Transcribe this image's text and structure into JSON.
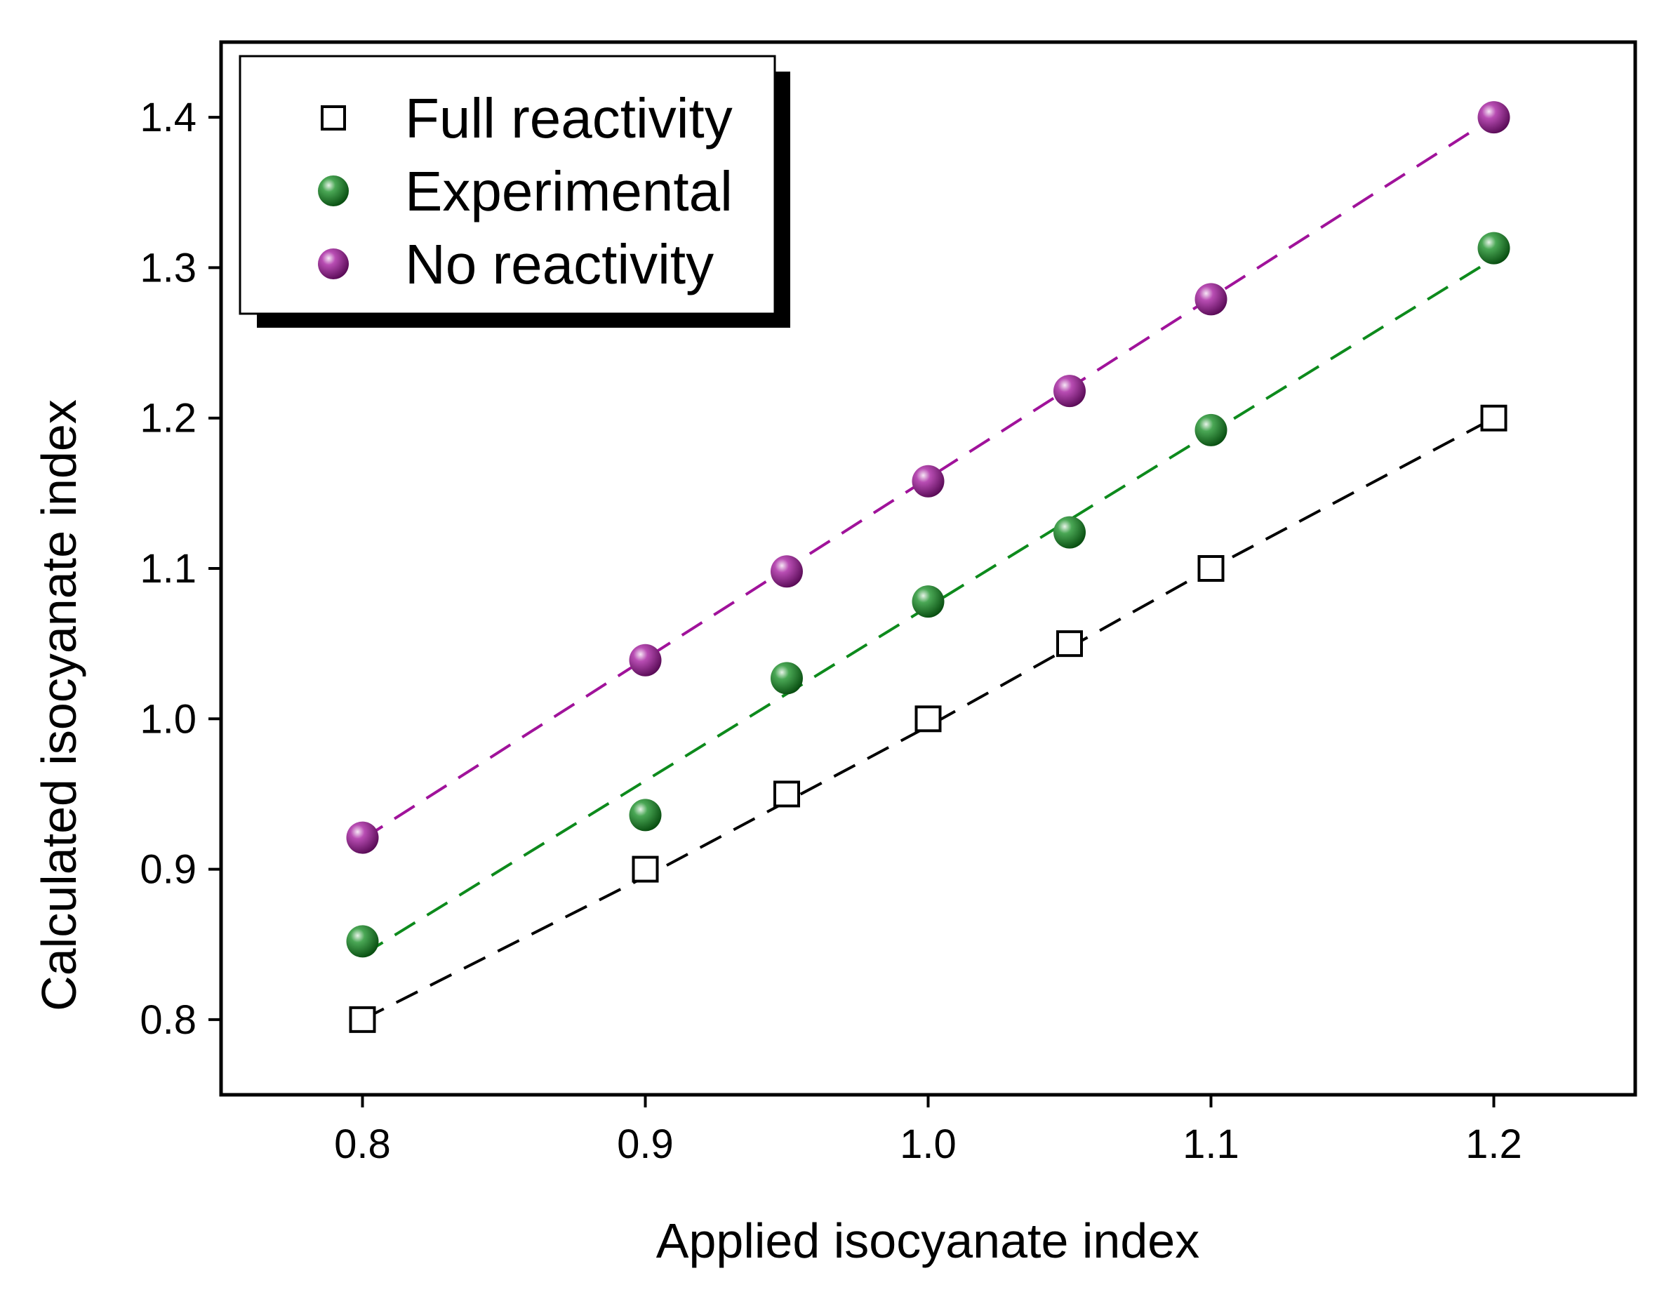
{
  "chart_data": {
    "type": "scatter",
    "title": "",
    "xlabel": "Applied isocyanate index",
    "ylabel": "Calculated isocyanate index",
    "xlim": [
      0.75,
      1.25
    ],
    "ylim": [
      0.75,
      1.45
    ],
    "xticks": [
      "0.8",
      "0.9",
      "1.0",
      "1.1",
      "1.2"
    ],
    "yticks": [
      "0.8",
      "0.9",
      "1.0",
      "1.1",
      "1.2",
      "1.3",
      "1.4"
    ],
    "grid": false,
    "legend_position": "top-left",
    "series": [
      {
        "name": "Full reactivity",
        "marker": "open-square",
        "color": "#000000",
        "x": [
          0.8,
          0.9,
          0.95,
          1.0,
          1.05,
          1.1,
          1.2
        ],
        "y": [
          0.8,
          0.9,
          0.95,
          1.0,
          1.05,
          1.1,
          1.2
        ],
        "fit": [
          [
            0.8,
            0.8
          ],
          [
            0.9,
            0.895
          ],
          [
            1.0,
            0.995
          ],
          [
            1.1,
            1.1
          ],
          [
            1.2,
            1.2
          ]
        ]
      },
      {
        "name": "Experimental",
        "marker": "sphere",
        "color": "#0d8a1c",
        "x": [
          0.8,
          0.9,
          0.95,
          1.0,
          1.05,
          1.1,
          1.2
        ],
        "y": [
          0.852,
          0.936,
          1.027,
          1.078,
          1.124,
          1.192,
          1.313
        ],
        "fit": [
          [
            0.8,
            0.843
          ],
          [
            1.2,
            1.306
          ]
        ]
      },
      {
        "name": "No reactivity",
        "marker": "sphere",
        "color": "#a0129a",
        "x": [
          0.8,
          0.9,
          0.95,
          1.0,
          1.05,
          1.1,
          1.2
        ],
        "y": [
          0.921,
          1.039,
          1.098,
          1.158,
          1.218,
          1.279,
          1.4
        ],
        "fit": [
          [
            0.8,
            0.92
          ],
          [
            1.2,
            1.4
          ]
        ]
      }
    ]
  }
}
